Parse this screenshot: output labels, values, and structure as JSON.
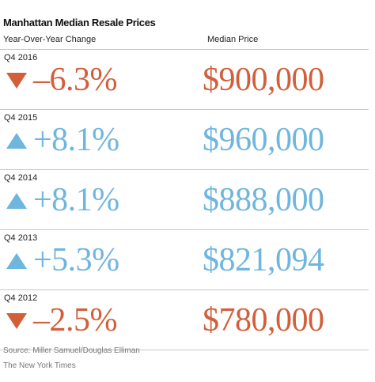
{
  "title": "Manhattan Median Resale Prices",
  "headers": {
    "change": "Year-Over-Year Change",
    "price": "Median Price"
  },
  "colors": {
    "up": "#6fb6de",
    "down": "#d25f3a"
  },
  "chart_data": {
    "type": "table",
    "title": "Manhattan Median Resale Prices",
    "columns": [
      "Year-Over-Year Change",
      "Median Price"
    ],
    "rows": [
      {
        "period": "Q4 2016",
        "direction": "down",
        "change": "–6.3%",
        "change_value": -6.3,
        "price": "$900,000",
        "price_value": 900000
      },
      {
        "period": "Q4 2015",
        "direction": "up",
        "change": "+8.1%",
        "change_value": 8.1,
        "price": "$960,000",
        "price_value": 960000
      },
      {
        "period": "Q4 2014",
        "direction": "up",
        "change": "+8.1%",
        "change_value": 8.1,
        "price": "$888,000",
        "price_value": 888000
      },
      {
        "period": "Q4 2013",
        "direction": "up",
        "change": "+5.3%",
        "change_value": 5.3,
        "price": "$821,094",
        "price_value": 821094
      },
      {
        "period": "Q4 2012",
        "direction": "down",
        "change": "–2.5%",
        "change_value": -2.5,
        "price": "$780,000",
        "price_value": 780000
      }
    ]
  },
  "source": "Source: Miller Samuel/Douglas Elliman",
  "credit": "The New York Times"
}
